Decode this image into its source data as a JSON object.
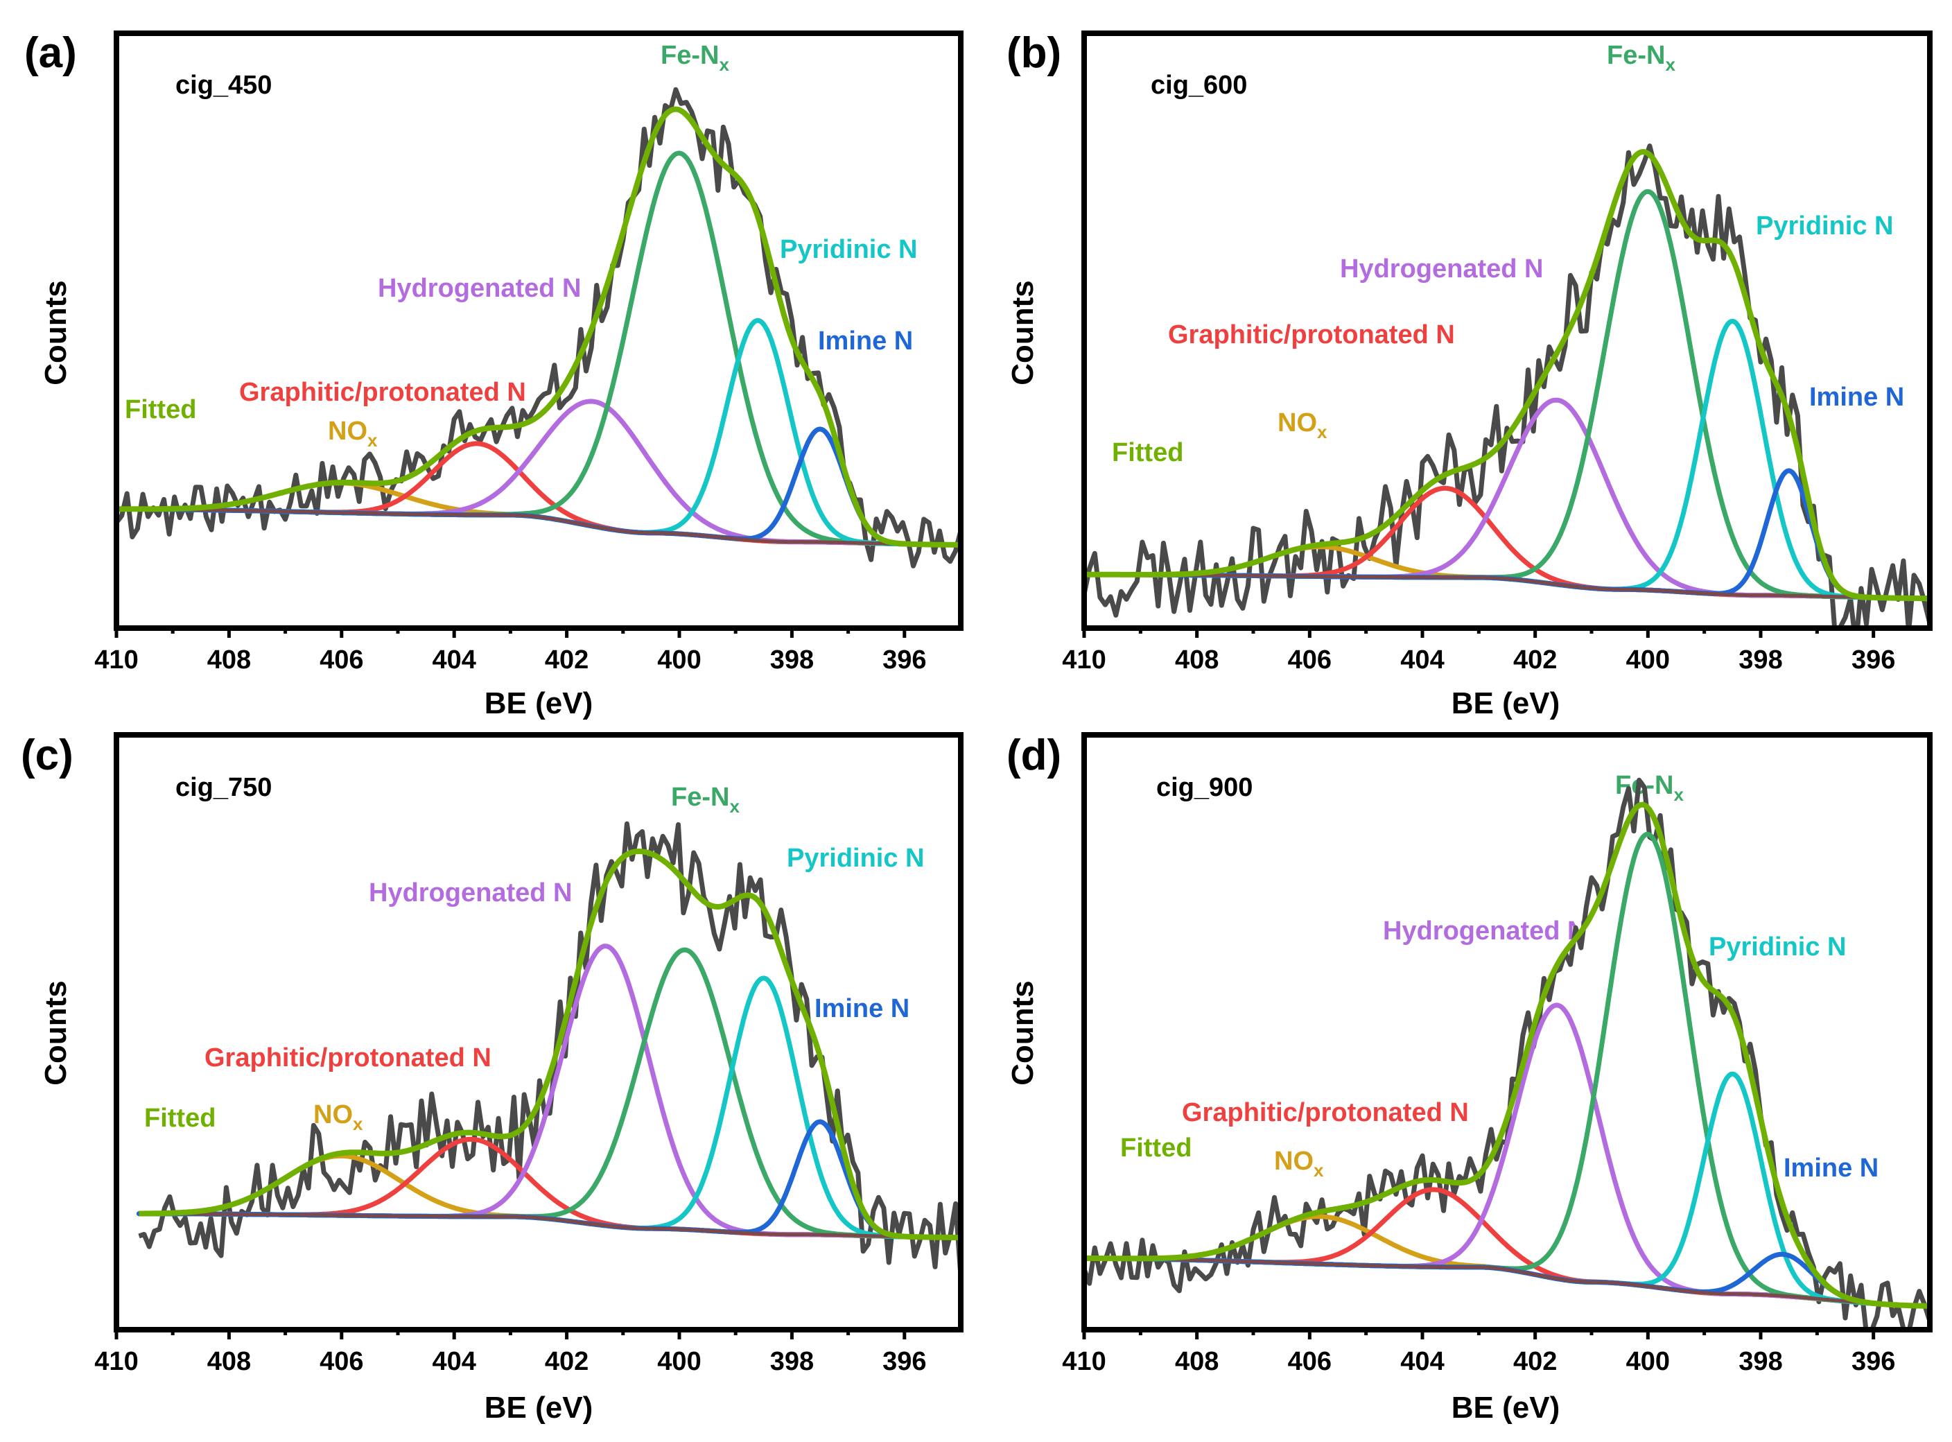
{
  "figure": {
    "xlabel": "BE (eV)",
    "ylabel": "Counts",
    "xlim": [
      410,
      395
    ],
    "xticks": [
      410,
      408,
      406,
      404,
      402,
      400,
      398,
      396
    ]
  },
  "chart_data": [
    {
      "type": "line",
      "panel_label": "(a)",
      "sample": "cig_450",
      "title": "cig_450",
      "xlabel": "BE (eV)",
      "ylabel": "Counts",
      "xlim": [
        410,
        395
      ],
      "ylim": [
        0,
        100
      ],
      "baseline": [
        [
          410,
          20
        ],
        [
          403,
          19
        ],
        [
          400.5,
          16
        ],
        [
          398,
          14.5
        ],
        [
          395,
          14
        ]
      ],
      "components": [
        {
          "name": "NOx",
          "label": "NO",
          "sub": "x",
          "color": "#d4a017",
          "center": 406.0,
          "fwhm": 2.6,
          "height": 5
        },
        {
          "name": "Graphitic/protonated N",
          "label": "Graphitic/protonated N",
          "sub": "",
          "color": "#ef4040",
          "center": 403.6,
          "fwhm": 1.8,
          "height": 12
        },
        {
          "name": "Hydrogenated N",
          "label": "Hydrogenated N",
          "sub": "",
          "color": "#b36be0",
          "center": 401.5,
          "fwhm": 2.2,
          "height": 21
        },
        {
          "name": "Fe-Nx",
          "label": "Fe-N",
          "sub": "x",
          "color": "#3aa866",
          "center": 400.0,
          "fwhm": 2.0,
          "height": 64
        },
        {
          "name": "Pyridinic N",
          "label": "Pyridinic N",
          "sub": "",
          "color": "#14c6c6",
          "center": 398.6,
          "fwhm": 1.3,
          "height": 37
        },
        {
          "name": "Imine N",
          "label": "Imine N",
          "sub": "",
          "color": "#1f66d6",
          "center": 397.5,
          "fwhm": 1.0,
          "height": 19
        }
      ],
      "fitted": {
        "name": "Fitted",
        "color": "#6fb000"
      },
      "raw": {
        "noise": 5,
        "seed": 11,
        "color": "#4a4a4a"
      }
    },
    {
      "type": "line",
      "panel_label": "(b)",
      "sample": "cig_600",
      "title": "cig_600",
      "xlabel": "BE (eV)",
      "ylabel": "Counts",
      "xlim": [
        410,
        395
      ],
      "ylim": [
        0,
        100
      ],
      "baseline": [
        [
          410,
          9
        ],
        [
          403,
          8.5
        ],
        [
          400.5,
          6.5
        ],
        [
          398,
          5.5
        ],
        [
          395,
          5
        ]
      ],
      "components": [
        {
          "name": "NOx",
          "label": "NO",
          "sub": "x",
          "color": "#d4a017",
          "center": 405.8,
          "fwhm": 2.2,
          "height": 5
        },
        {
          "name": "Graphitic/protonated N",
          "label": "Graphitic/protonated N",
          "sub": "",
          "color": "#ef4040",
          "center": 403.6,
          "fwhm": 1.9,
          "height": 15
        },
        {
          "name": "Hydrogenated N",
          "label": "Hydrogenated N",
          "sub": "",
          "color": "#b36be0",
          "center": 401.6,
          "fwhm": 2.0,
          "height": 31
        },
        {
          "name": "Fe-Nx",
          "label": "Fe-N",
          "sub": "x",
          "color": "#3aa866",
          "center": 400.0,
          "fwhm": 1.8,
          "height": 67
        },
        {
          "name": "Pyridinic N",
          "label": "Pyridinic N",
          "sub": "",
          "color": "#14c6c6",
          "center": 398.5,
          "fwhm": 1.3,
          "height": 46
        },
        {
          "name": "Imine N",
          "label": "Imine N",
          "sub": "",
          "color": "#1f66d6",
          "center": 397.5,
          "fwhm": 0.9,
          "height": 21
        }
      ],
      "fitted": {
        "name": "Fitted",
        "color": "#6fb000"
      },
      "raw": {
        "noise": 7,
        "seed": 23,
        "color": "#4a4a4a"
      }
    },
    {
      "type": "line",
      "panel_label": "(c)",
      "sample": "cig_750",
      "title": "cig_750",
      "xlabel": "BE (eV)",
      "ylabel": "Counts",
      "xlim": [
        410,
        395
      ],
      "ylim": [
        0,
        100
      ],
      "baseline": [
        [
          409.6,
          19.5
        ],
        [
          403,
          19
        ],
        [
          400.5,
          17
        ],
        [
          398,
          16
        ],
        [
          395,
          15.5
        ]
      ],
      "components": [
        {
          "name": "NOx",
          "label": "NO",
          "sub": "x",
          "color": "#d4a017",
          "center": 406.0,
          "fwhm": 2.4,
          "height": 10
        },
        {
          "name": "Graphitic/protonated N",
          "label": "Graphitic/protonated N",
          "sub": "",
          "color": "#ef4040",
          "center": 403.7,
          "fwhm": 2.1,
          "height": 13
        },
        {
          "name": "Hydrogenated N",
          "label": "Hydrogenated N",
          "sub": "",
          "color": "#b36be0",
          "center": 401.3,
          "fwhm": 1.8,
          "height": 47
        },
        {
          "name": "Fe-Nx",
          "label": "Fe-N",
          "sub": "x",
          "color": "#3aa866",
          "center": 399.9,
          "fwhm": 1.9,
          "height": 47
        },
        {
          "name": "Pyridinic N",
          "label": "Pyridinic N",
          "sub": "",
          "color": "#14c6c6",
          "center": 398.5,
          "fwhm": 1.4,
          "height": 43
        },
        {
          "name": "Imine N",
          "label": "Imine N",
          "sub": "",
          "color": "#1f66d6",
          "center": 397.5,
          "fwhm": 1.0,
          "height": 19
        }
      ],
      "fitted": {
        "name": "Fitted",
        "color": "#6fb000"
      },
      "raw": {
        "noise": 7,
        "seed": 37,
        "color": "#4a4a4a"
      }
    },
    {
      "type": "line",
      "panel_label": "(d)",
      "sample": "cig_900",
      "title": "cig_900",
      "xlabel": "BE (eV)",
      "ylabel": "Counts",
      "xlim": [
        410,
        395
      ],
      "ylim": [
        0,
        100
      ],
      "baseline": [
        [
          410,
          12
        ],
        [
          403,
          10.5
        ],
        [
          401,
          8
        ],
        [
          398.5,
          6
        ],
        [
          395,
          4
        ]
      ],
      "components": [
        {
          "name": "NOx",
          "label": "NO",
          "sub": "x",
          "color": "#d4a017",
          "center": 405.8,
          "fwhm": 2.4,
          "height": 8
        },
        {
          "name": "Graphitic/protonated N",
          "label": "Graphitic/protonated N",
          "sub": "",
          "color": "#ef4040",
          "center": 403.8,
          "fwhm": 2.0,
          "height": 13
        },
        {
          "name": "Hydrogenated N",
          "label": "Hydrogenated N",
          "sub": "",
          "color": "#b36be0",
          "center": 401.6,
          "fwhm": 1.7,
          "height": 46
        },
        {
          "name": "Fe-Nx",
          "label": "Fe-N",
          "sub": "x",
          "color": "#3aa866",
          "center": 400.0,
          "fwhm": 1.7,
          "height": 76
        },
        {
          "name": "Pyridinic N",
          "label": "Pyridinic N",
          "sub": "",
          "color": "#14c6c6",
          "center": 398.5,
          "fwhm": 1.2,
          "height": 37
        },
        {
          "name": "Imine N",
          "label": "Imine N",
          "sub": "",
          "color": "#1f66d6",
          "center": 397.6,
          "fwhm": 1.2,
          "height": 7
        }
      ],
      "fitted": {
        "name": "Fitted",
        "color": "#6fb000"
      },
      "raw": {
        "noise": 5,
        "seed": 53,
        "color": "#4a4a4a"
      }
    }
  ]
}
